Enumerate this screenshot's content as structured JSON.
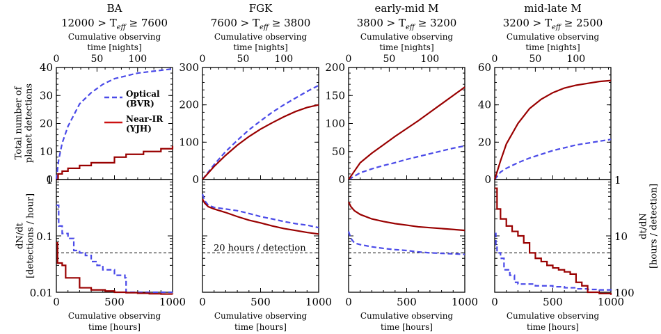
{
  "figure": {
    "top_axis_label": [
      "Cumulative observing",
      "time [nights]"
    ],
    "bottom_axis_label": [
      "Cumulative observing",
      "time [hours]"
    ],
    "left_ylabel_top": [
      "Total number of",
      "planet detections"
    ],
    "left_ylabel_bottom": [
      "dN/dt",
      "[detections / hour]"
    ],
    "right_ylabel_bottom": [
      "dt/dN",
      "[hours / detection]"
    ],
    "threshold_label": "20 hours / detection",
    "legend": [
      {
        "label_lines": [
          "Optical",
          "(BVR)"
        ],
        "color": "#4a4ae8",
        "dash": true
      },
      {
        "label_lines": [
          "Near-IR",
          "(YJH)"
        ],
        "color": "#cc1111",
        "dash": false
      }
    ],
    "colors": {
      "optical": "#4a4ae8",
      "nir": "#990000"
    }
  },
  "chart_data": [
    {
      "type": "line",
      "panel": "cumulative detections",
      "title": "BA",
      "subtitle": "12000 > T_eff ≥ 7600",
      "xlim": [
        0,
        1000
      ],
      "top_xlim_nights": [
        0,
        143
      ],
      "top_xticks": [
        0,
        50,
        100
      ],
      "ylim": [
        0,
        40
      ],
      "yticks": [
        0,
        10,
        20,
        30,
        40
      ],
      "series": [
        {
          "name": "Optical (BVR)",
          "step": false,
          "x": [
            0,
            20,
            50,
            100,
            150,
            200,
            300,
            400,
            500,
            600,
            700,
            800,
            900,
            1000
          ],
          "y": [
            0,
            7,
            13,
            19,
            23,
            27,
            31,
            34,
            36,
            37,
            38,
            38.5,
            39,
            39.5
          ]
        },
        {
          "name": "Near-IR (YJH)",
          "step": true,
          "x": [
            0,
            15,
            50,
            100,
            200,
            300,
            500,
            600,
            750,
            900,
            1000
          ],
          "y": [
            0,
            2,
            3,
            4,
            5,
            6,
            8,
            9,
            10,
            11,
            12
          ]
        }
      ]
    },
    {
      "type": "line",
      "panel": "cumulative detections",
      "title": "FGK",
      "subtitle": "7600 > T_eff ≥ 3800",
      "xlim": [
        0,
        1000
      ],
      "top_xlim_nights": [
        0,
        143
      ],
      "top_xticks": [
        0,
        50,
        100
      ],
      "ylim": [
        0,
        300
      ],
      "yticks": [
        0,
        100,
        200,
        300
      ],
      "series": [
        {
          "name": "Optical (BVR)",
          "step": false,
          "x": [
            0,
            100,
            200,
            300,
            400,
            500,
            600,
            700,
            800,
            900,
            1000
          ],
          "y": [
            0,
            40,
            75,
            105,
            133,
            157,
            180,
            200,
            218,
            236,
            252
          ]
        },
        {
          "name": "Near-IR (YJH)",
          "step": false,
          "x": [
            0,
            100,
            200,
            300,
            400,
            500,
            600,
            700,
            800,
            900,
            1000
          ],
          "y": [
            0,
            35,
            65,
            92,
            115,
            135,
            152,
            168,
            182,
            193,
            200
          ]
        }
      ]
    },
    {
      "type": "line",
      "panel": "cumulative detections",
      "title": "early-mid M",
      "subtitle": "3800 > T_eff ≥ 3200",
      "xlim": [
        0,
        1000
      ],
      "top_xlim_nights": [
        0,
        143
      ],
      "top_xticks": [
        0,
        50,
        100
      ],
      "ylim": [
        0,
        200
      ],
      "yticks": [
        0,
        50,
        100,
        150,
        200
      ],
      "series": [
        {
          "name": "Optical (BVR)",
          "step": false,
          "x": [
            0,
            100,
            200,
            300,
            400,
            500,
            600,
            700,
            800,
            900,
            1000
          ],
          "y": [
            0,
            12,
            19,
            25,
            30,
            36,
            41,
            46,
            51,
            56,
            60
          ]
        },
        {
          "name": "Near-IR (YJH)",
          "step": false,
          "x": [
            0,
            100,
            200,
            300,
            400,
            500,
            600,
            700,
            800,
            900,
            1000
          ],
          "y": [
            0,
            30,
            47,
            62,
            77,
            91,
            105,
            120,
            135,
            150,
            165
          ]
        }
      ]
    },
    {
      "type": "line",
      "panel": "cumulative detections",
      "title": "mid-late M",
      "subtitle": "3200 > T_eff ≥ 2500",
      "xlim": [
        0,
        1000
      ],
      "top_xlim_nights": [
        0,
        143
      ],
      "top_xticks": [
        0,
        50,
        100
      ],
      "ylim": [
        0,
        60
      ],
      "yticks": [
        0,
        20,
        40,
        60
      ],
      "series": [
        {
          "name": "Optical (BVR)",
          "step": false,
          "x": [
            0,
            50,
            100,
            200,
            300,
            400,
            500,
            600,
            700,
            800,
            900,
            1000
          ],
          "y": [
            0,
            4,
            6,
            9,
            11.5,
            13.5,
            15.5,
            17,
            18.5,
            19.5,
            20.5,
            21.5
          ]
        },
        {
          "name": "Near-IR (YJH)",
          "step": false,
          "x": [
            0,
            50,
            100,
            200,
            300,
            400,
            500,
            600,
            700,
            800,
            900,
            1000
          ],
          "y": [
            0,
            10,
            19,
            30,
            38,
            43,
            46.5,
            49,
            50.5,
            51.5,
            52.5,
            53
          ]
        }
      ]
    },
    {
      "type": "line",
      "panel": "detection rate",
      "title": "BA",
      "xlim": [
        0,
        1000
      ],
      "ylim": [
        0.01,
        1
      ],
      "yscale": "log",
      "left_ticks": [
        0.01,
        0.1,
        1
      ],
      "threshold": 0.05,
      "series": [
        {
          "name": "Optical (BVR)",
          "step": true,
          "x": [
            0,
            20,
            50,
            100,
            150,
            200,
            250,
            300,
            350,
            400,
            500,
            590,
            600
          ],
          "y": [
            0.35,
            0.15,
            0.11,
            0.09,
            0.055,
            0.05,
            0.045,
            0.035,
            0.03,
            0.025,
            0.02,
            0.018,
            0.01
          ]
        },
        {
          "name": "Near-IR (YJH)",
          "step": true,
          "x": [
            0,
            10,
            50,
            80,
            200,
            300,
            420,
            500,
            600,
            700,
            800,
            900,
            1000
          ],
          "y": [
            0.075,
            0.033,
            0.03,
            0.018,
            0.012,
            0.011,
            0.0105,
            0.01,
            0.0098,
            0.0096,
            0.0094,
            0.0093,
            0.0092
          ]
        }
      ]
    },
    {
      "type": "line",
      "panel": "detection rate",
      "title": "FGK",
      "xlim": [
        0,
        1000
      ],
      "ylim": [
        0.01,
        1
      ],
      "yscale": "log",
      "threshold": 0.05,
      "series": [
        {
          "name": "Optical (BVR)",
          "step": false,
          "x": [
            0,
            20,
            50,
            100,
            200,
            300,
            400,
            500,
            600,
            700,
            800,
            900,
            1000
          ],
          "y": [
            0.55,
            0.42,
            0.35,
            0.32,
            0.3,
            0.28,
            0.25,
            0.22,
            0.2,
            0.18,
            0.165,
            0.155,
            0.14
          ]
        },
        {
          "name": "Near-IR (YJH)",
          "step": false,
          "x": [
            0,
            20,
            50,
            100,
            200,
            300,
            400,
            500,
            600,
            700,
            800,
            900,
            1000
          ],
          "y": [
            0.45,
            0.38,
            0.33,
            0.3,
            0.26,
            0.22,
            0.19,
            0.17,
            0.15,
            0.135,
            0.125,
            0.115,
            0.108
          ]
        }
      ]
    },
    {
      "type": "line",
      "panel": "detection rate",
      "title": "early-mid M",
      "xlim": [
        0,
        1000
      ],
      "ylim": [
        0.01,
        1
      ],
      "yscale": "log",
      "threshold": 0.05,
      "series": [
        {
          "name": "Optical (BVR)",
          "step": false,
          "x": [
            0,
            20,
            50,
            100,
            200,
            300,
            400,
            500,
            600,
            700,
            800,
            900,
            1000
          ],
          "y": [
            0.12,
            0.09,
            0.075,
            0.07,
            0.064,
            0.06,
            0.057,
            0.055,
            0.052,
            0.05,
            0.049,
            0.048,
            0.047
          ]
        },
        {
          "name": "Near-IR (YJH)",
          "step": false,
          "x": [
            0,
            20,
            50,
            100,
            200,
            300,
            400,
            500,
            600,
            700,
            800,
            900,
            1000
          ],
          "y": [
            0.4,
            0.33,
            0.28,
            0.24,
            0.2,
            0.18,
            0.165,
            0.155,
            0.145,
            0.14,
            0.135,
            0.13,
            0.125
          ]
        }
      ]
    },
    {
      "type": "line",
      "panel": "detection rate",
      "title": "mid-late M",
      "xlim": [
        0,
        1000
      ],
      "ylim": [
        0.01,
        1
      ],
      "yscale": "log",
      "right_tick_values_hours_per_detection": [
        1,
        10,
        100
      ],
      "threshold": 0.05,
      "series": [
        {
          "name": "Optical (BVR)",
          "step": true,
          "x": [
            0,
            10,
            20,
            50,
            80,
            130,
            170,
            200,
            300,
            350,
            500,
            600,
            700,
            800,
            900,
            1000
          ],
          "y": [
            0.11,
            0.07,
            0.05,
            0.04,
            0.025,
            0.02,
            0.015,
            0.014,
            0.014,
            0.013,
            0.0125,
            0.012,
            0.0115,
            0.0112,
            0.011,
            0.0105
          ]
        },
        {
          "name": "Near-IR (YJH)",
          "step": true,
          "x": [
            0,
            20,
            50,
            100,
            150,
            200,
            250,
            300,
            350,
            400,
            450,
            500,
            550,
            600,
            650,
            700,
            750,
            800,
            900,
            1000
          ],
          "y": [
            0.7,
            0.3,
            0.2,
            0.15,
            0.12,
            0.1,
            0.075,
            0.05,
            0.04,
            0.035,
            0.03,
            0.027,
            0.025,
            0.023,
            0.021,
            0.015,
            0.013,
            0.01,
            0.0095,
            0.009
          ]
        }
      ]
    }
  ]
}
